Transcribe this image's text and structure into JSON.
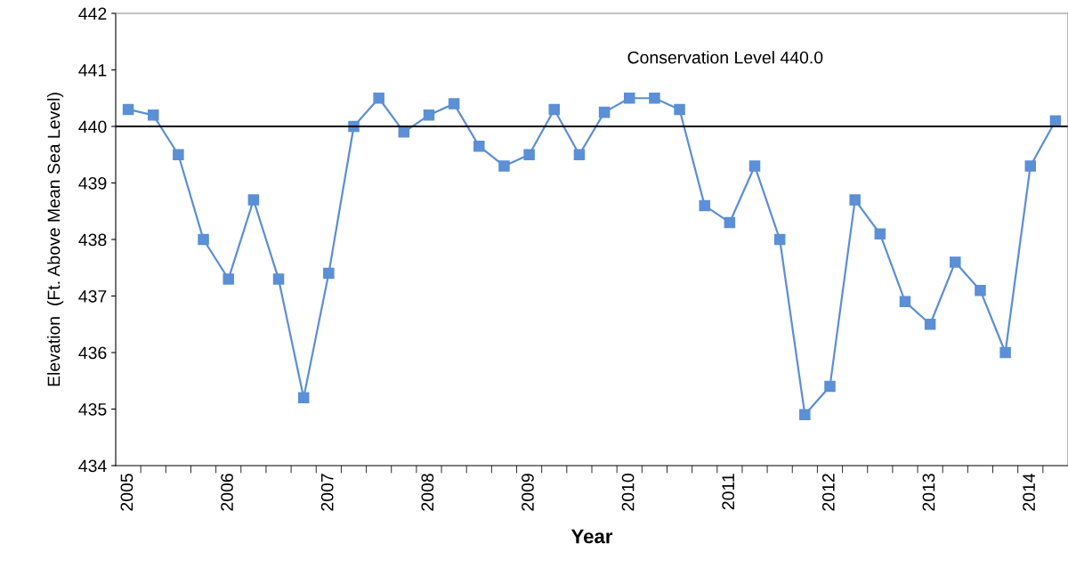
{
  "chart_data": {
    "type": "line",
    "xlabel": "Year",
    "ylabel": "Elevation  (Ft. Above Mean Sea Level)",
    "categories": [
      "2005",
      null,
      null,
      null,
      "2006",
      null,
      null,
      null,
      "2007",
      null,
      null,
      null,
      "2008",
      null,
      null,
      null,
      "2009",
      null,
      null,
      null,
      "2010",
      null,
      null,
      null,
      "2011",
      null,
      null,
      null,
      "2012",
      null,
      null,
      null,
      "2013",
      null,
      null,
      null,
      "2014",
      null
    ],
    "series": [
      {
        "color": "#5b8fd6",
        "values": [
          440.3,
          440.2,
          439.5,
          438.0,
          437.3,
          438.7,
          437.3,
          435.2,
          437.4,
          440.0,
          440.5,
          439.9,
          440.2,
          440.4,
          439.65,
          439.3,
          439.5,
          440.3,
          439.5,
          440.25,
          440.5,
          440.5,
          440.3,
          438.6,
          438.3,
          439.3,
          438.0,
          434.9,
          435.4,
          438.7,
          438.1,
          436.9,
          436.5,
          437.6,
          437.1,
          436.0,
          439.3,
          440.1
        ]
      }
    ],
    "ylim": [
      434,
      442
    ],
    "yticks": [
      434,
      435,
      436,
      437,
      438,
      439,
      440,
      441,
      442
    ],
    "ref_lines": [
      {
        "axis": "y",
        "value": 440.0,
        "label": "Conservation Level 440.0",
        "color": "#000000"
      }
    ],
    "marker": "square",
    "line_style": "solid",
    "grid": false,
    "legend": false
  }
}
